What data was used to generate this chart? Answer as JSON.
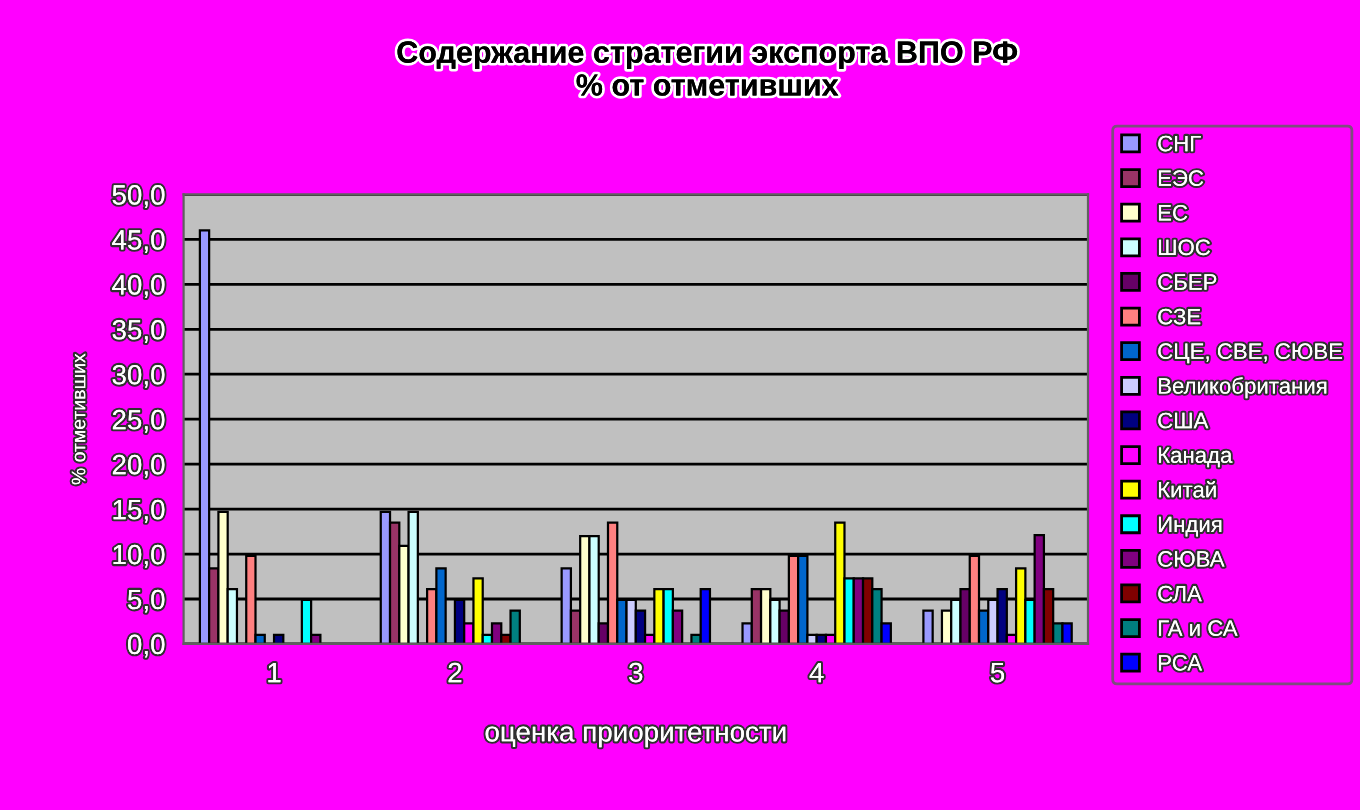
{
  "chart_data": {
    "type": "bar",
    "title": "Содержание стратегии экспорта ВПО РФ\n% от отметивших",
    "xlabel": "оценка приоритетности",
    "ylabel": "% отметивших",
    "categories": [
      "1",
      "2",
      "3",
      "4",
      "5"
    ],
    "ylim": [
      0,
      50
    ],
    "yticks": [
      {
        "value": 0,
        "label": "0,0"
      },
      {
        "value": 5,
        "label": "5,0"
      },
      {
        "value": 10,
        "label": "10,0"
      },
      {
        "value": 15,
        "label": "15,0"
      },
      {
        "value": 20,
        "label": "20,0"
      },
      {
        "value": 25,
        "label": "25,0"
      },
      {
        "value": 30,
        "label": "30,0"
      },
      {
        "value": 35,
        "label": "35,0"
      },
      {
        "value": 40,
        "label": "40,0"
      },
      {
        "value": 45,
        "label": "45,0"
      },
      {
        "value": 50,
        "label": "50,0"
      }
    ],
    "grid": "y",
    "legend": "right",
    "series": [
      {
        "name": "СНГ",
        "color": "#9999ff",
        "values": [
          46,
          14.7,
          8.4,
          2.3,
          3.7
        ]
      },
      {
        "name": "ЕЭС",
        "color": "#993366",
        "values": [
          8.4,
          13.5,
          3.7,
          6.1,
          null
        ]
      },
      {
        "name": "ЕС",
        "color": "#ffffcc",
        "values": [
          14.7,
          10.9,
          12,
          6.1,
          3.7
        ]
      },
      {
        "name": "ШОС",
        "color": "#ccffff",
        "values": [
          6.1,
          14.7,
          12,
          4.9,
          4.9
        ]
      },
      {
        "name": "СБЕР",
        "color": "#660066",
        "values": [
          null,
          null,
          2.3,
          3.7,
          6.1
        ]
      },
      {
        "name": "СЗЕ",
        "color": "#ff8080",
        "values": [
          9.8,
          6.1,
          13.5,
          9.8,
          9.8
        ]
      },
      {
        "name": "СЦЕ, СВЕ, СЮВЕ",
        "color": "#0066cc",
        "values": [
          1,
          8.4,
          4.9,
          9.8,
          3.7
        ]
      },
      {
        "name": "Великобритания",
        "color": "#ccccff",
        "values": [
          null,
          null,
          4.9,
          1,
          4.9
        ]
      },
      {
        "name": "США",
        "color": "#000080",
        "values": [
          1,
          4.9,
          3.7,
          1,
          6.1
        ]
      },
      {
        "name": "Канада",
        "color": "#ff00ff",
        "values": [
          null,
          2.3,
          1,
          1,
          1
        ]
      },
      {
        "name": "Китай",
        "color": "#ffff00",
        "values": [
          null,
          7.3,
          6.1,
          13.5,
          8.4
        ]
      },
      {
        "name": "Индия",
        "color": "#00ffff",
        "values": [
          4.9,
          1,
          6.1,
          7.3,
          4.9
        ]
      },
      {
        "name": "СЮВА",
        "color": "#800080",
        "values": [
          1,
          2.3,
          3.7,
          7.3,
          12.1
        ]
      },
      {
        "name": "СЛА",
        "color": "#800000",
        "values": [
          null,
          1,
          null,
          7.3,
          6.1
        ]
      },
      {
        "name": "ГА и СА",
        "color": "#008080",
        "values": [
          null,
          3.7,
          1,
          6.1,
          2.3
        ]
      },
      {
        "name": "РСА",
        "color": "#0000ff",
        "values": [
          null,
          null,
          6.1,
          2.3,
          2.3
        ]
      }
    ]
  }
}
